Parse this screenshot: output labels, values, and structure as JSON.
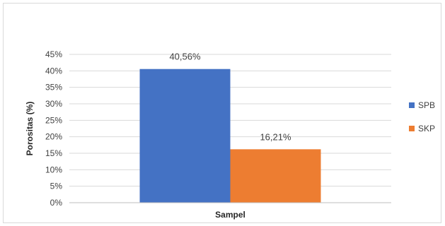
{
  "chart_data": {
    "type": "bar",
    "categories": [
      ""
    ],
    "series": [
      {
        "name": "SPB",
        "values": [
          40.56
        ],
        "color": "#4472c4",
        "label": "40,56%"
      },
      {
        "name": "SKP",
        "values": [
          16.21
        ],
        "color": "#ed7d31",
        "label": "16,21%"
      }
    ],
    "xlabel": "Sampel",
    "ylabel": "Porositas (%)",
    "ylim": [
      0,
      45
    ],
    "y_ticks": [
      "0%",
      "5%",
      "10%",
      "15%",
      "20%",
      "25%",
      "30%",
      "35%",
      "40%",
      "45%"
    ],
    "grid": true,
    "legend": "right"
  }
}
